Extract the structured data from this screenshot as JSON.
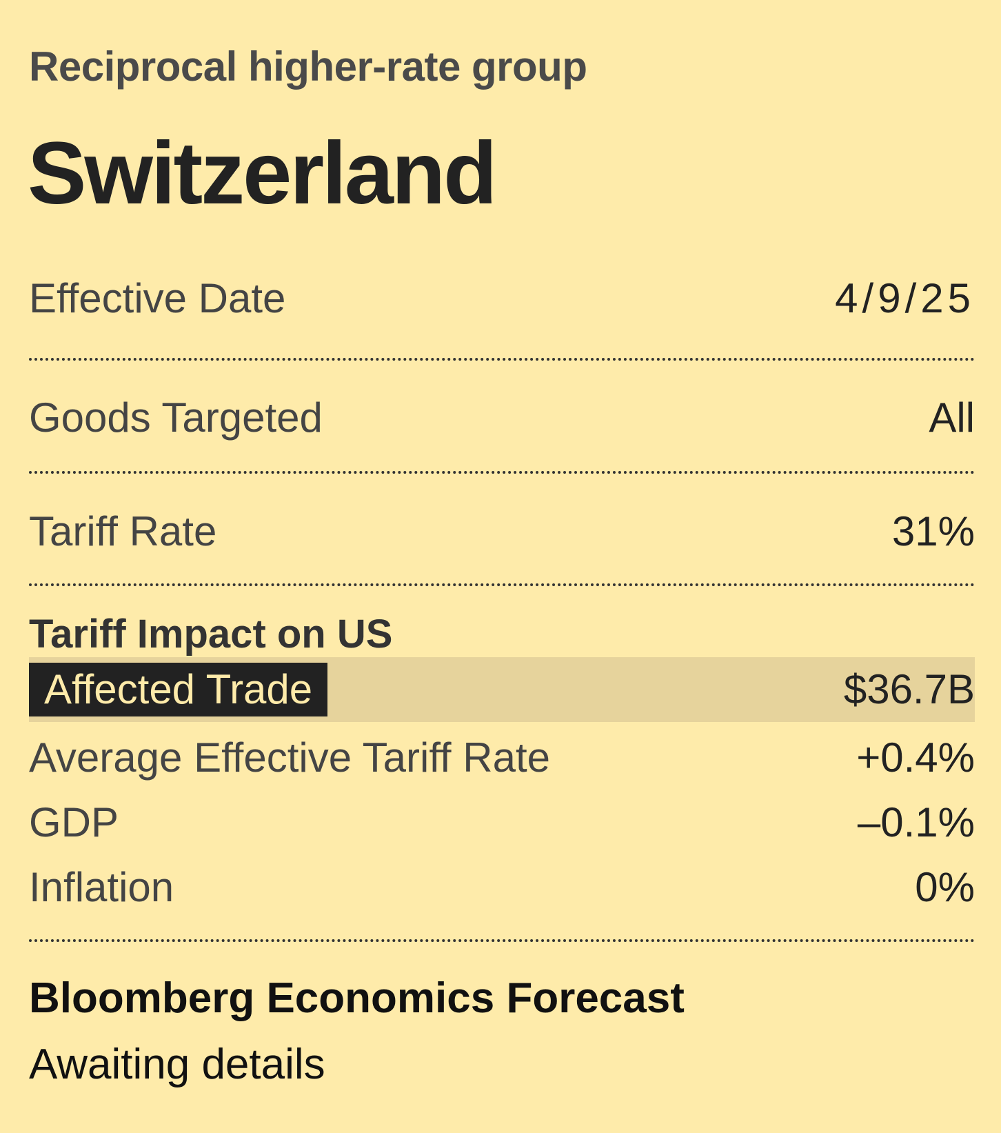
{
  "card": {
    "group_label": "Reciprocal higher-rate group",
    "country": "Switzerland"
  },
  "details": [
    {
      "label": "Effective Date",
      "value": "4/9/25"
    },
    {
      "label": "Goods Targeted",
      "value": "All"
    },
    {
      "label": "Tariff Rate",
      "value": "31%"
    }
  ],
  "impact": {
    "heading": "Tariff Impact on US",
    "highlight": {
      "label": "Affected Trade",
      "value": "$36.7B"
    },
    "rows": [
      {
        "label": "Average Effective Tariff Rate",
        "value": "+0.4%"
      },
      {
        "label": "GDP",
        "value": "–0.1%"
      },
      {
        "label": "Inflation",
        "value": "0%"
      }
    ]
  },
  "forecast": {
    "heading": "Bloomberg Economics Forecast",
    "text": "Awaiting details"
  },
  "colors": {
    "background": "#FEEBAA",
    "highlight_band": "#E6D39C",
    "label_badge": "#222222"
  }
}
